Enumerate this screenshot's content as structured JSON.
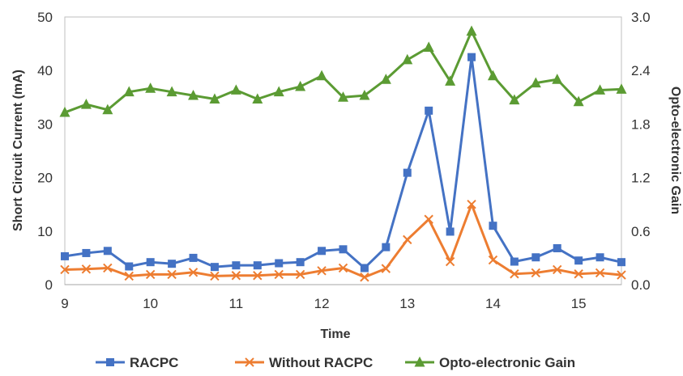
{
  "chart_data": {
    "type": "line",
    "xlabel": "Time",
    "ylabel_left": "Short Circuit Current (mA)",
    "ylabel_right": "Opto-electronic Gain",
    "xlim": [
      9,
      15.5
    ],
    "ylim_left": [
      0,
      50
    ],
    "ylim_right": [
      0,
      3.0
    ],
    "x_ticks": [
      "9",
      "10",
      "11",
      "12",
      "13",
      "14",
      "15"
    ],
    "y_left_ticks": [
      "0",
      "10",
      "20",
      "30",
      "40",
      "50"
    ],
    "y_right_ticks": [
      "0.0",
      "0.6",
      "1.2",
      "1.8",
      "2.4",
      "3.0"
    ],
    "grid": false,
    "legend_position": "bottom",
    "x": [
      9,
      9.25,
      9.5,
      9.75,
      10,
      10.25,
      10.5,
      10.75,
      11,
      11.25,
      11.5,
      11.75,
      12,
      12.25,
      12.5,
      12.75,
      13,
      13.25,
      13.5,
      13.75,
      14,
      14.25,
      14.5,
      14.75,
      15,
      15.25,
      15.5
    ],
    "series": [
      {
        "name": "RACPC",
        "axis": "left",
        "color": "#4472C4",
        "marker": "square",
        "values": [
          5.3,
          5.9,
          6.3,
          3.4,
          4.2,
          3.9,
          5.0,
          3.3,
          3.6,
          3.6,
          4.0,
          4.2,
          6.3,
          6.6,
          3.1,
          7.0,
          20.9,
          32.5,
          9.9,
          42.5,
          11.0,
          4.3,
          5.1,
          6.8,
          4.5,
          5.1,
          4.2
        ]
      },
      {
        "name": "Without RACPC",
        "axis": "left",
        "color": "#ED7D31",
        "marker": "x",
        "values": [
          2.8,
          2.9,
          3.1,
          1.6,
          1.9,
          1.9,
          2.3,
          1.6,
          1.7,
          1.7,
          1.9,
          1.9,
          2.6,
          3.1,
          1.4,
          3.0,
          8.4,
          12.2,
          4.3,
          15.0,
          4.6,
          2.0,
          2.2,
          2.8,
          2.0,
          2.2,
          1.8
        ]
      },
      {
        "name": "Opto-electronic Gain",
        "axis": "right",
        "color": "#5B9B33",
        "marker": "triangle",
        "values": [
          1.93,
          2.02,
          1.96,
          2.16,
          2.2,
          2.16,
          2.12,
          2.08,
          2.18,
          2.08,
          2.16,
          2.22,
          2.34,
          2.1,
          2.12,
          2.3,
          2.52,
          2.66,
          2.28,
          2.84,
          2.34,
          2.07,
          2.26,
          2.3,
          2.05,
          2.18,
          2.19
        ]
      }
    ]
  }
}
